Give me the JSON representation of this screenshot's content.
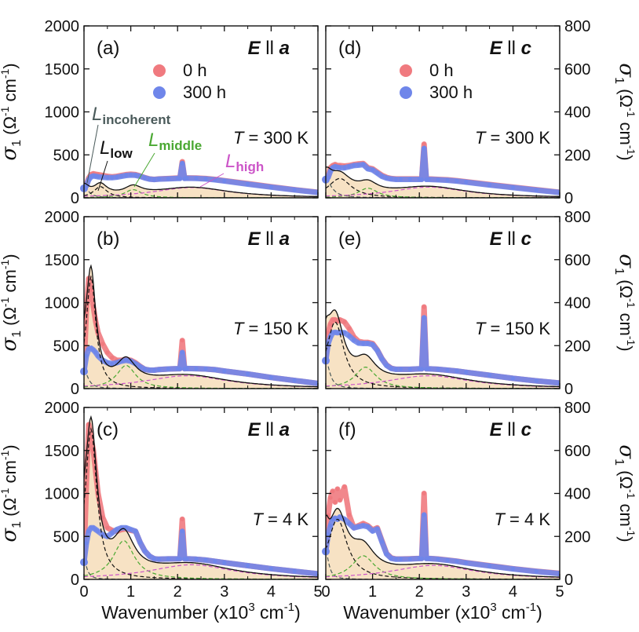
{
  "chart_data": [
    {
      "id": "a",
      "panel_label": "(a)",
      "polarization": "E ll a",
      "pol_E": "E",
      "pol_sep": "ll",
      "pol_axis": "a",
      "temperature_label": "T = 300 K",
      "t_T": "T",
      "t_rest": " = 300 K",
      "type": "line",
      "side": "left",
      "ylim": [
        0,
        2000
      ],
      "yticks": [
        "0",
        "500",
        "1000",
        "1500",
        "2000"
      ],
      "x": [
        0,
        0.05,
        0.1,
        0.15,
        0.2,
        0.25,
        0.3,
        0.4,
        0.5,
        0.6,
        0.7,
        0.8,
        0.9,
        1.0,
        1.1,
        1.2,
        1.3,
        1.4,
        1.5,
        1.6,
        1.8,
        2.0,
        2.05,
        2.1,
        2.15,
        2.2,
        2.4,
        2.6,
        2.8,
        3.0,
        3.5,
        4.0,
        4.5,
        5.0
      ],
      "series": [
        {
          "name": "0 h",
          "values": [
            110,
            150,
            230,
            270,
            280,
            275,
            270,
            260,
            250,
            245,
            250,
            260,
            270,
            275,
            270,
            255,
            235,
            220,
            215,
            220,
            225,
            230,
            230,
            420,
            230,
            232,
            230,
            225,
            215,
            200,
            165,
            130,
            95,
            65
          ]
        },
        {
          "name": "300 h",
          "values": [
            110,
            140,
            210,
            245,
            255,
            250,
            245,
            240,
            235,
            235,
            240,
            250,
            260,
            265,
            262,
            250,
            232,
            218,
            213,
            218,
            222,
            226,
            226,
            400,
            226,
            228,
            226,
            220,
            210,
            196,
            160,
            125,
            92,
            62
          ]
        }
      ],
      "components": [
        {
          "name": "L_incoherent",
          "peak_x": 0.0,
          "peak": 120,
          "width": 0.25
        },
        {
          "name": "L_low",
          "peak_x": 0.35,
          "peak": 130,
          "width": 0.35
        },
        {
          "name": "L_middle",
          "peak_x": 1.05,
          "peak": 95,
          "width": 0.45
        },
        {
          "name": "L_high",
          "peak_x": 2.3,
          "peak": 120,
          "width": 2.0
        }
      ],
      "annotations": {
        "incoherent": "incoherent",
        "low": "low",
        "middle": "middle",
        "high": "high",
        "L": "L"
      }
    },
    {
      "id": "b",
      "panel_label": "(b)",
      "polarization": "E ll a",
      "pol_E": "E",
      "pol_sep": "ll",
      "pol_axis": "a",
      "temperature_label": "T = 150 K",
      "t_T": "T",
      "t_rest": " = 150 K",
      "type": "line",
      "side": "left",
      "ylim": [
        0,
        2000
      ],
      "yticks": [
        "0",
        "500",
        "1000",
        "1500",
        "2000"
      ],
      "x": [
        0,
        0.05,
        0.1,
        0.15,
        0.2,
        0.25,
        0.3,
        0.4,
        0.5,
        0.6,
        0.7,
        0.8,
        0.9,
        1.0,
        1.1,
        1.2,
        1.3,
        1.4,
        1.5,
        1.6,
        1.8,
        2.0,
        2.05,
        2.1,
        2.15,
        2.2,
        2.4,
        2.6,
        2.8,
        3.0,
        3.5,
        4.0,
        4.5,
        5.0
      ],
      "series": [
        {
          "name": "0 h",
          "values": [
            200,
            900,
            1280,
            1150,
            950,
            780,
            650,
            520,
            420,
            360,
            330,
            330,
            340,
            330,
            300,
            260,
            225,
            215,
            215,
            222,
            228,
            232,
            232,
            560,
            232,
            234,
            232,
            228,
            220,
            205,
            170,
            130,
            95,
            60
          ]
        },
        {
          "name": "300 h",
          "values": [
            200,
            380,
            460,
            470,
            450,
            420,
            380,
            330,
            300,
            290,
            300,
            320,
            330,
            320,
            290,
            255,
            225,
            215,
            215,
            222,
            228,
            232,
            232,
            420,
            232,
            234,
            232,
            228,
            220,
            205,
            170,
            130,
            95,
            60
          ]
        }
      ],
      "components": [
        {
          "name": "L_incoherent",
          "peak_x": 0.0,
          "peak": 220,
          "width": 0.2
        },
        {
          "name": "L_low",
          "peak_x": 0.15,
          "peak": 1300,
          "width": 0.25
        },
        {
          "name": "L_middle",
          "peak_x": 0.9,
          "peak": 270,
          "width": 0.5
        },
        {
          "name": "L_high",
          "peak_x": 2.2,
          "peak": 150,
          "width": 2.2
        }
      ]
    },
    {
      "id": "c",
      "panel_label": "(c)",
      "polarization": "E ll a",
      "pol_E": "E",
      "pol_sep": "ll",
      "pol_axis": "a",
      "temperature_label": "T = 4 K",
      "t_T": "T",
      "t_rest": " = 4 K",
      "type": "line",
      "side": "left",
      "ylim": [
        0,
        2000
      ],
      "yticks": [
        "0",
        "500",
        "1000",
        "1500",
        "2000"
      ],
      "x": [
        0,
        0.05,
        0.1,
        0.15,
        0.2,
        0.25,
        0.3,
        0.4,
        0.5,
        0.6,
        0.7,
        0.8,
        0.9,
        1.0,
        1.1,
        1.2,
        1.3,
        1.4,
        1.5,
        1.6,
        1.8,
        2.0,
        2.05,
        2.1,
        2.15,
        2.2,
        2.4,
        2.6,
        2.8,
        3.0,
        3.5,
        4.0,
        4.5,
        5.0
      ],
      "series": [
        {
          "name": "0 h",
          "values": [
            200,
            1100,
            1800,
            1650,
            1500,
            1250,
            1000,
            720,
            600,
            570,
            560,
            580,
            590,
            570,
            560,
            430,
            330,
            270,
            240,
            235,
            238,
            240,
            240,
            700,
            240,
            240,
            235,
            225,
            210,
            195,
            160,
            125,
            95,
            65
          ]
        },
        {
          "name": "300 h",
          "values": [
            200,
            420,
            560,
            600,
            600,
            580,
            560,
            520,
            500,
            540,
            580,
            600,
            600,
            580,
            560,
            430,
            330,
            270,
            240,
            235,
            238,
            240,
            240,
            560,
            240,
            240,
            235,
            225,
            210,
            195,
            160,
            125,
            95,
            65
          ]
        }
      ],
      "components": [
        {
          "name": "L_incoherent",
          "peak_x": 0.0,
          "peak": 220,
          "width": 0.15
        },
        {
          "name": "L_low",
          "peak_x": 0.15,
          "peak": 1750,
          "width": 0.3
        },
        {
          "name": "L_middle",
          "peak_x": 0.85,
          "peak": 450,
          "width": 0.55
        },
        {
          "name": "L_high",
          "peak_x": 2.3,
          "peak": 170,
          "width": 2.2
        }
      ]
    },
    {
      "id": "d",
      "panel_label": "(d)",
      "polarization": "E ll c",
      "pol_E": "E",
      "pol_sep": "ll",
      "pol_axis": "c",
      "temperature_label": "T = 300 K",
      "t_T": "T",
      "t_rest": " = 300 K",
      "type": "line",
      "side": "right",
      "ylim": [
        0,
        800
      ],
      "yticks": [
        "0",
        "200",
        "400",
        "600",
        "800"
      ],
      "x": [
        0,
        0.05,
        0.1,
        0.15,
        0.2,
        0.25,
        0.3,
        0.4,
        0.5,
        0.6,
        0.7,
        0.8,
        0.9,
        1.0,
        1.1,
        1.2,
        1.3,
        1.4,
        1.5,
        1.6,
        1.8,
        2.0,
        2.05,
        2.1,
        2.15,
        2.2,
        2.4,
        2.6,
        2.8,
        3.0,
        3.5,
        4.0,
        4.5,
        5.0
      ],
      "series": [
        {
          "name": "0 h",
          "values": [
            85,
            100,
            140,
            150,
            155,
            150,
            150,
            148,
            150,
            155,
            158,
            160,
            140,
            135,
            120,
            105,
            95,
            90,
            88,
            88,
            88,
            88,
            88,
            250,
            88,
            88,
            86,
            84,
            80,
            75,
            62,
            50,
            38,
            26
          ]
        },
        {
          "name": "300 h",
          "values": [
            85,
            95,
            125,
            140,
            145,
            142,
            140,
            140,
            145,
            150,
            152,
            155,
            135,
            130,
            115,
            100,
            92,
            88,
            86,
            86,
            86,
            86,
            86,
            230,
            86,
            86,
            84,
            82,
            78,
            73,
            60,
            48,
            36,
            25
          ]
        }
      ],
      "components": [
        {
          "name": "L_incoherent",
          "peak_x": 0.0,
          "peak": 85,
          "width": 0.3
        },
        {
          "name": "L_low",
          "peak_x": 0.3,
          "peak": 90,
          "width": 0.6
        },
        {
          "name": "L_middle",
          "peak_x": 0.9,
          "peak": 45,
          "width": 0.5
        },
        {
          "name": "L_high",
          "peak_x": 2.2,
          "peak": 50,
          "width": 2.0
        }
      ],
      "legend": [
        {
          "label": "0 h",
          "color": "#f07a7f"
        },
        {
          "label": "300 h",
          "color": "#6f86ea"
        }
      ]
    },
    {
      "id": "e",
      "panel_label": "(e)",
      "polarization": "E ll c",
      "pol_E": "E",
      "pol_sep": "ll",
      "pol_axis": "c",
      "temperature_label": "T = 150 K",
      "t_T": "T",
      "t_rest": " = 150 K",
      "type": "line",
      "side": "right",
      "ylim": [
        0,
        800
      ],
      "yticks": [
        "0",
        "200",
        "400",
        "600",
        "800"
      ],
      "x": [
        0,
        0.05,
        0.1,
        0.15,
        0.2,
        0.25,
        0.3,
        0.4,
        0.5,
        0.6,
        0.7,
        0.8,
        0.9,
        1.0,
        1.1,
        1.2,
        1.3,
        1.4,
        1.5,
        1.6,
        1.8,
        2.0,
        2.05,
        2.1,
        2.15,
        2.2,
        2.4,
        2.6,
        2.8,
        3.0,
        3.5,
        4.0,
        4.5,
        5.0
      ],
      "series": [
        {
          "name": "0 h",
          "values": [
            130,
            260,
            300,
            320,
            320,
            315,
            320,
            310,
            280,
            240,
            220,
            215,
            215,
            210,
            180,
            140,
            110,
            95,
            90,
            90,
            90,
            92,
            92,
            380,
            92,
            92,
            90,
            86,
            82,
            76,
            62,
            48,
            36,
            26
          ]
        },
        {
          "name": "300 h",
          "values": [
            130,
            210,
            240,
            260,
            262,
            260,
            262,
            260,
            245,
            225,
            212,
            210,
            210,
            205,
            178,
            138,
            108,
            94,
            90,
            90,
            90,
            92,
            92,
            330,
            92,
            92,
            90,
            86,
            82,
            76,
            62,
            48,
            36,
            26
          ]
        }
      ],
      "components": [
        {
          "name": "L_incoherent",
          "peak_x": 0.0,
          "peak": 130,
          "width": 0.2
        },
        {
          "name": "L_low",
          "peak_x": 0.2,
          "peak": 310,
          "width": 0.45
        },
        {
          "name": "L_middle",
          "peak_x": 0.85,
          "peak": 100,
          "width": 0.55
        },
        {
          "name": "L_high",
          "peak_x": 2.2,
          "peak": 60,
          "width": 2.2
        }
      ]
    },
    {
      "id": "f",
      "panel_label": "(f)",
      "polarization": "E ll c",
      "pol_E": "E",
      "pol_sep": "ll",
      "pol_axis": "c",
      "temperature_label": "T = 4 K",
      "t_T": "T",
      "t_rest": " = 4 K",
      "type": "line",
      "side": "right",
      "ylim": [
        0,
        800
      ],
      "yticks": [
        "0",
        "200",
        "400",
        "600",
        "800"
      ],
      "x": [
        0,
        0.05,
        0.1,
        0.15,
        0.2,
        0.25,
        0.3,
        0.4,
        0.5,
        0.6,
        0.7,
        0.8,
        0.9,
        1.0,
        1.1,
        1.2,
        1.3,
        1.4,
        1.5,
        1.6,
        1.8,
        2.0,
        2.05,
        2.1,
        2.15,
        2.2,
        2.4,
        2.6,
        2.8,
        3.0,
        3.5,
        4.0,
        4.5,
        5.0
      ],
      "series": [
        {
          "name": "0 h",
          "values": [
            130,
            300,
            380,
            410,
            360,
            420,
            370,
            430,
            300,
            240,
            250,
            260,
            250,
            230,
            240,
            180,
            120,
            100,
            95,
            95,
            96,
            98,
            98,
            400,
            98,
            98,
            95,
            90,
            85,
            78,
            64,
            50,
            38,
            28
          ]
        },
        {
          "name": "300 h",
          "values": [
            130,
            210,
            250,
            280,
            285,
            280,
            290,
            280,
            260,
            240,
            245,
            250,
            245,
            225,
            235,
            175,
            118,
            98,
            94,
            94,
            95,
            97,
            97,
            300,
            97,
            97,
            94,
            89,
            84,
            77,
            63,
            49,
            37,
            27
          ]
        }
      ],
      "components": [
        {
          "name": "L_incoherent",
          "peak_x": 0.0,
          "peak": 130,
          "width": 0.15
        },
        {
          "name": "L_low",
          "peak_x": 0.25,
          "peak": 280,
          "width": 0.5
        },
        {
          "name": "L_middle",
          "peak_x": 0.8,
          "peak": 110,
          "width": 0.6
        },
        {
          "name": "L_high",
          "peak_x": 2.3,
          "peak": 65,
          "width": 2.2
        }
      ]
    }
  ],
  "axes": {
    "xlim": [
      0,
      5
    ],
    "xticks": [
      "0",
      "1",
      "2",
      "3",
      "4",
      "5"
    ],
    "xlabel": "Wavenumber (x10",
    "xlabel_exp": "3",
    "xlabel_unit": " cm",
    "xlabel_unit_exp": "-1",
    "xlabel_close": ")",
    "ylabel_sigma": "σ",
    "ylabel_sub": "1",
    "ylabel_open": " (Ω",
    "ylabel_exp1": "-1",
    "ylabel_cm": " cm",
    "ylabel_exp2": "-1",
    "ylabel_close": ")"
  },
  "colors": {
    "h0": "#f07a7f",
    "h300": "#6f86ea",
    "fill": "#f7e2c4",
    "incoherent": "#4a5a5a",
    "low": "#111111",
    "middle": "#4aa832",
    "high": "#cc55c8"
  }
}
